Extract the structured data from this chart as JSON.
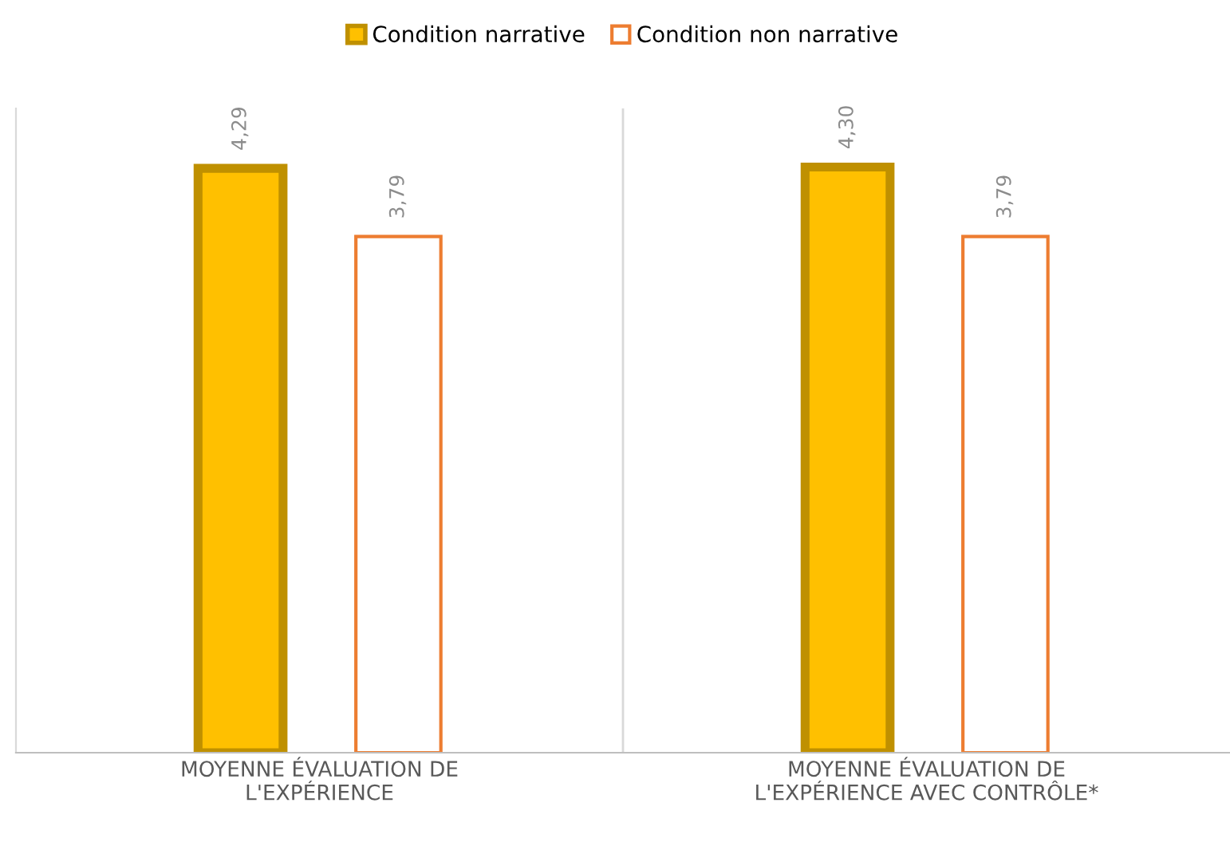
{
  "chart_data": {
    "type": "bar",
    "categories": [
      "MOYENNE ÉVALUATION DE\nL'EXPÉRIENCE",
      "MOYENNE ÉVALUATION DE\nL'EXPÉRIENCE AVEC CONTRÔLE*"
    ],
    "series": [
      {
        "name": "Condition narrative",
        "color": "#ffc000",
        "values": [
          4.29,
          4.3
        ],
        "value_labels": [
          "4,29",
          "4,30"
        ]
      },
      {
        "name": "Condition non narrative",
        "color": "#ed7d31",
        "values": [
          3.79,
          3.79
        ],
        "value_labels": [
          "3,79",
          "3,79"
        ]
      }
    ],
    "legend": "top",
    "grid": false,
    "tick_labels": "x"
  }
}
